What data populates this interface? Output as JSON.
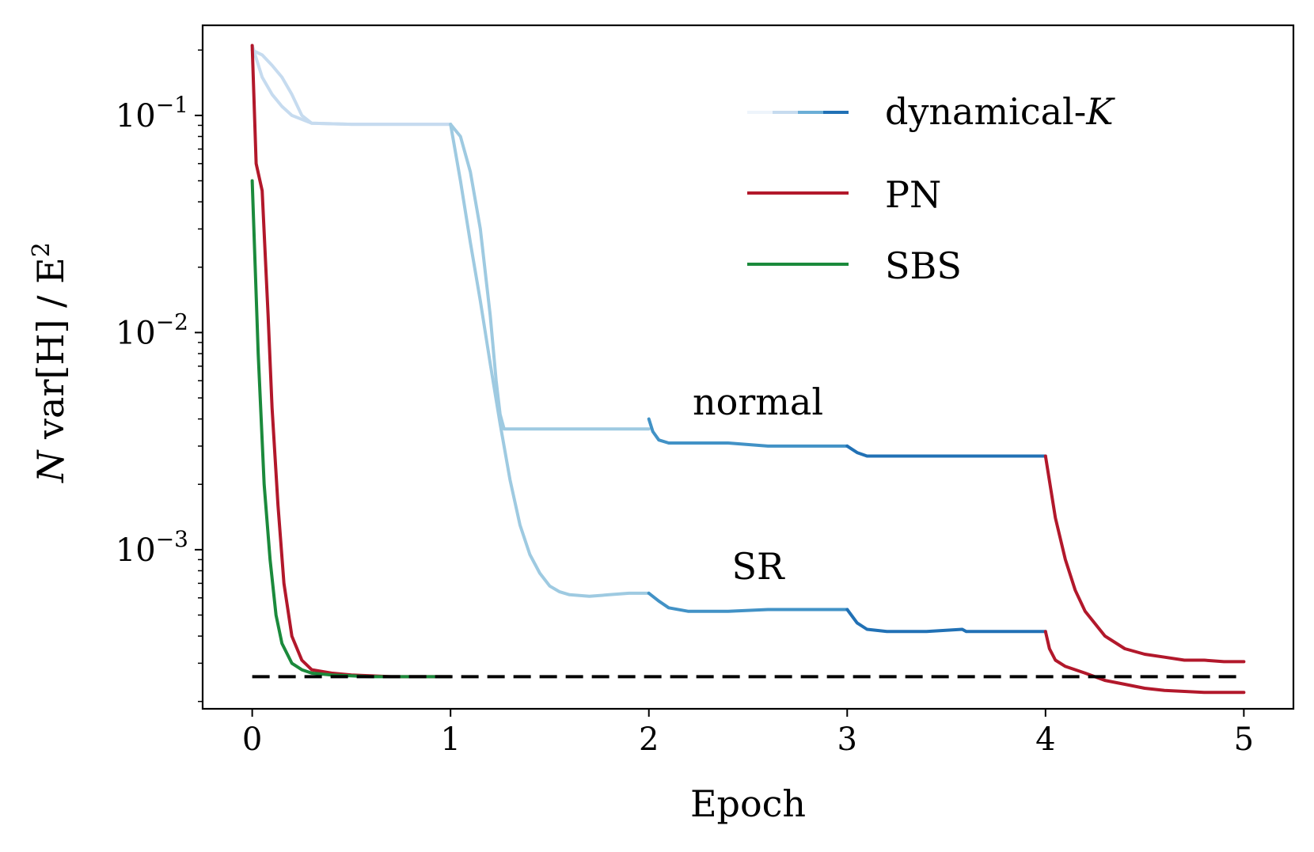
{
  "chart_data": {
    "type": "line",
    "xlabel": "Epoch",
    "ylabel_main": "N",
    "ylabel_rest": " var[H] / E",
    "ylabel_sup": "2",
    "xlim": [
      -0.25,
      5.25
    ],
    "ylim": [
      0.000185,
      0.26
    ],
    "yscale": "log",
    "x_ticks": [
      0,
      1,
      2,
      3,
      4,
      5
    ],
    "x_tick_labels": [
      "0",
      "1",
      "2",
      "3",
      "4",
      "5"
    ],
    "y_ticks": [
      {
        "value": 0.1,
        "base": "10",
        "exp": "−1"
      },
      {
        "value": 0.01,
        "base": "10",
        "exp": "−2"
      },
      {
        "value": 0.001,
        "base": "10",
        "exp": "−3"
      }
    ],
    "legend": [
      {
        "label": "dynamical-",
        "label_italic": "K",
        "colors": [
          "#eef4fb",
          "#c6dbef",
          "#6baed6",
          "#2171b5"
        ]
      },
      {
        "label": "PN",
        "color": "#b2182b"
      },
      {
        "label": "SBS",
        "color": "#1b8a3c"
      }
    ],
    "annotations": [
      {
        "text": "normal",
        "x": 2.55,
        "y": 0.0036
      },
      {
        "text": "SR",
        "x": 2.55,
        "y": 0.00063
      }
    ],
    "reference_line": {
      "y": 0.00026,
      "x": [
        0,
        5
      ],
      "color": "#000000",
      "style": "dashed"
    },
    "series": [
      {
        "name": "dynamical-K normal (phase 1)",
        "color": "#c6dbef",
        "x": [
          0,
          0.05,
          0.1,
          0.15,
          0.2,
          0.25,
          0.3,
          0.5,
          0.7,
          0.9,
          1.0
        ],
        "y": [
          0.2,
          0.19,
          0.17,
          0.15,
          0.125,
          0.1,
          0.092,
          0.091,
          0.091,
          0.091,
          0.091
        ]
      },
      {
        "name": "dynamical-K SR (phase 1)",
        "color": "#c6dbef",
        "x": [
          0,
          0.05,
          0.1,
          0.15,
          0.2,
          0.3,
          0.5,
          0.7,
          0.9,
          1.0
        ],
        "y": [
          0.21,
          0.15,
          0.125,
          0.11,
          0.1,
          0.092,
          0.091,
          0.091,
          0.091,
          0.091
        ]
      },
      {
        "name": "dynamical-K normal (phase 2)",
        "color": "#9ecae1",
        "x": [
          1.0,
          1.05,
          1.1,
          1.15,
          1.2,
          1.23,
          1.25,
          1.27,
          1.3,
          1.5,
          1.7,
          1.9,
          2.0
        ],
        "y": [
          0.091,
          0.08,
          0.055,
          0.03,
          0.012,
          0.006,
          0.0042,
          0.0036,
          0.0036,
          0.0036,
          0.0036,
          0.0036,
          0.0036
        ]
      },
      {
        "name": "dynamical-K SR (phase 2)",
        "color": "#9ecae1",
        "x": [
          1.0,
          1.05,
          1.1,
          1.15,
          1.2,
          1.25,
          1.3,
          1.35,
          1.4,
          1.45,
          1.5,
          1.55,
          1.6,
          1.7,
          1.8,
          1.9,
          2.0
        ],
        "y": [
          0.091,
          0.05,
          0.026,
          0.014,
          0.0072,
          0.0038,
          0.0021,
          0.0013,
          0.00095,
          0.00078,
          0.00068,
          0.00064,
          0.00062,
          0.00061,
          0.00062,
          0.00063,
          0.00063
        ]
      },
      {
        "name": "dynamical-K normal (phase 3)",
        "color": "#4292c6",
        "x": [
          2.0,
          2.02,
          2.05,
          2.1,
          2.2,
          2.4,
          2.6,
          2.8,
          2.95,
          3.0
        ],
        "y": [
          0.004,
          0.0035,
          0.0032,
          0.0031,
          0.0031,
          0.0031,
          0.003,
          0.003,
          0.003,
          0.003
        ]
      },
      {
        "name": "dynamical-K SR (phase 3)",
        "color": "#4292c6",
        "x": [
          2.0,
          2.05,
          2.1,
          2.2,
          2.4,
          2.6,
          2.8,
          2.9,
          3.0
        ],
        "y": [
          0.00063,
          0.00058,
          0.00054,
          0.00052,
          0.00052,
          0.00053,
          0.00053,
          0.00053,
          0.00053
        ]
      },
      {
        "name": "dynamical-K normal (phase 4)",
        "color": "#2171b5",
        "x": [
          3.0,
          3.05,
          3.1,
          3.2,
          3.4,
          3.6,
          3.8,
          4.0
        ],
        "y": [
          0.003,
          0.0028,
          0.0027,
          0.0027,
          0.0027,
          0.0027,
          0.0027,
          0.0027
        ]
      },
      {
        "name": "dynamical-K SR (phase 4)",
        "color": "#2171b5",
        "x": [
          3.0,
          3.05,
          3.1,
          3.2,
          3.4,
          3.58,
          3.6,
          3.8,
          4.0
        ],
        "y": [
          0.00053,
          0.00046,
          0.00043,
          0.00042,
          0.00042,
          0.00043,
          0.00042,
          0.00042,
          0.00042
        ]
      },
      {
        "name": "PN (start)",
        "color": "#b2182b",
        "x": [
          0,
          0.02,
          0.05,
          0.08,
          0.1,
          0.13,
          0.16,
          0.2,
          0.25,
          0.3,
          0.4,
          0.5,
          0.7,
          1.0
        ],
        "y": [
          0.21,
          0.06,
          0.045,
          0.012,
          0.0045,
          0.0016,
          0.0007,
          0.0004,
          0.00031,
          0.00028,
          0.00027,
          0.000265,
          0.00026,
          0.00026
        ]
      },
      {
        "name": "PN normal (end)",
        "color": "#b2182b",
        "x": [
          4.0,
          4.05,
          4.1,
          4.15,
          4.2,
          4.3,
          4.4,
          4.5,
          4.6,
          4.7,
          4.8,
          4.9,
          5.0
        ],
        "y": [
          0.0027,
          0.0014,
          0.0009,
          0.00065,
          0.00052,
          0.0004,
          0.00035,
          0.00033,
          0.00032,
          0.00031,
          0.00031,
          0.000305,
          0.000305
        ]
      },
      {
        "name": "PN SR (end)",
        "color": "#b2182b",
        "x": [
          4.0,
          4.02,
          4.05,
          4.1,
          4.2,
          4.3,
          4.4,
          4.5,
          4.6,
          4.8,
          5.0
        ],
        "y": [
          0.00042,
          0.00035,
          0.00031,
          0.00029,
          0.00027,
          0.00025,
          0.00024,
          0.00023,
          0.000225,
          0.00022,
          0.00022
        ]
      },
      {
        "name": "SBS",
        "color": "#1b8a3c",
        "x": [
          0,
          0.03,
          0.06,
          0.09,
          0.12,
          0.15,
          0.2,
          0.25,
          0.3,
          0.4,
          0.6,
          0.8,
          1.0
        ],
        "y": [
          0.05,
          0.008,
          0.002,
          0.0009,
          0.0005,
          0.00037,
          0.0003,
          0.00028,
          0.00027,
          0.000265,
          0.00026,
          0.00026,
          0.00026
        ]
      }
    ]
  }
}
